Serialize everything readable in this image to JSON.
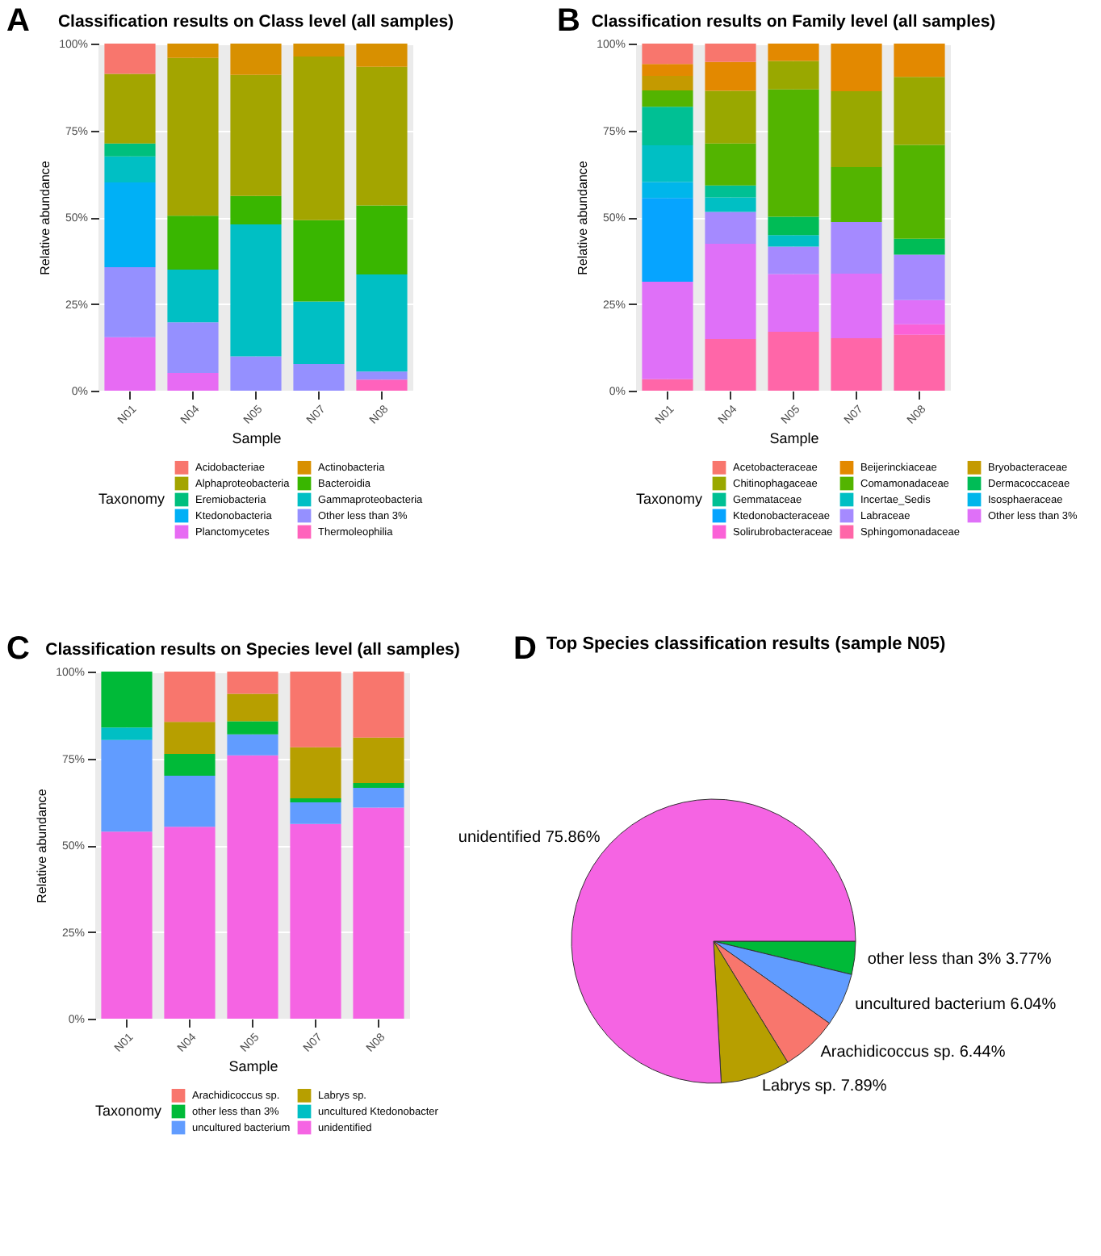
{
  "chart_data": [
    {
      "type": "bar",
      "title": "Classification results on Class level (all samples)",
      "annotations": [
        "A"
      ],
      "xlabel": "Sample",
      "ylabel": "Relative abundance",
      "legend_title": "Taxonomy",
      "categories": [
        "N01",
        "N04",
        "N05",
        "N07",
        "N08"
      ],
      "stacked": true,
      "ylim": [
        0,
        100
      ],
      "yticks": [
        {
          "value": 0,
          "label": "0%"
        },
        {
          "value": 25,
          "label": "25%"
        },
        {
          "value": 50,
          "label": "50%"
        },
        {
          "value": 75,
          "label": "75%"
        },
        {
          "value": 100,
          "label": "100%"
        }
      ],
      "grid": true,
      "legend": "bottom",
      "series": [
        {
          "name": "Thermoleophilia",
          "color": "#ff62bc",
          "values": [
            0,
            0,
            0,
            0,
            3.2
          ]
        },
        {
          "name": "Planctomycetes",
          "color": "#e76bf3",
          "values": [
            15.4,
            5.1,
            0,
            0,
            0
          ]
        },
        {
          "name": "Other less than 3%",
          "color": "#9590ff",
          "values": [
            20.2,
            14.6,
            9.9,
            7.7,
            2.3
          ]
        },
        {
          "name": "Ktedonobacteria",
          "color": "#00b0f6",
          "values": [
            24.4,
            0,
            0,
            0,
            0
          ]
        },
        {
          "name": "Gammaproteobacteria",
          "color": "#00bfc4",
          "values": [
            7.5,
            15.2,
            38.0,
            18.0,
            28.0
          ]
        },
        {
          "name": "Eremiobacteria",
          "color": "#00bf7d",
          "values": [
            3.7,
            0,
            0,
            0,
            0
          ]
        },
        {
          "name": "Bacteroidia",
          "color": "#39b600",
          "values": [
            0,
            15.5,
            8.2,
            23.4,
            19.9
          ]
        },
        {
          "name": "Alphaproteobacteria",
          "color": "#a3a500",
          "values": [
            20.1,
            45.5,
            34.9,
            47.2,
            39.9
          ]
        },
        {
          "name": "Actinobacteria",
          "color": "#d89000",
          "values": [
            0,
            4.1,
            9.0,
            3.7,
            6.7
          ]
        },
        {
          "name": "Acidobacteriae",
          "color": "#f8766d",
          "values": [
            8.7,
            0,
            0,
            0,
            0
          ]
        }
      ]
    },
    {
      "type": "bar",
      "title": "Classification results on Family level (all samples)",
      "annotations": [
        "B"
      ],
      "xlabel": "Sample",
      "ylabel": "Relative abundance",
      "legend_title": "Taxonomy",
      "categories": [
        "N01",
        "N04",
        "N05",
        "N07",
        "N08"
      ],
      "stacked": true,
      "ylim": [
        0,
        100
      ],
      "yticks": [
        {
          "value": 0,
          "label": "0%"
        },
        {
          "value": 25,
          "label": "25%"
        },
        {
          "value": 50,
          "label": "50%"
        },
        {
          "value": 75,
          "label": "75%"
        },
        {
          "value": 100,
          "label": "100%"
        }
      ],
      "grid": true,
      "legend": "bottom",
      "series": [
        {
          "name": "Sphingomonadaceae",
          "color": "#ff66a8",
          "values": [
            3.3,
            14.9,
            17.0,
            15.1,
            16.1
          ]
        },
        {
          "name": "Solirubrobacteraceae",
          "color": "#fb61d7",
          "values": [
            0,
            0,
            0,
            0,
            3.0
          ]
        },
        {
          "name": "Other less than 3%",
          "color": "#df70f8",
          "values": [
            28.1,
            27.4,
            16.6,
            18.6,
            7.0
          ]
        },
        {
          "name": "Labraceae",
          "color": "#a58aff",
          "values": [
            0,
            9.2,
            7.9,
            14.9,
            13.1
          ]
        },
        {
          "name": "Ktedonobacteraceae",
          "color": "#06a4ff",
          "values": [
            24.1,
            0,
            0,
            0,
            0
          ]
        },
        {
          "name": "Isosphaeraceae",
          "color": "#00b6eb",
          "values": [
            4.6,
            0,
            0,
            0,
            0
          ]
        },
        {
          "name": "Incertae_Sedis",
          "color": "#00bfc4",
          "values": [
            10.6,
            4.2,
            3.3,
            0,
            0
          ]
        },
        {
          "name": "Gemmataceae",
          "color": "#00c094",
          "values": [
            11.1,
            3.4,
            0,
            0,
            0
          ]
        },
        {
          "name": "Dermacoccaceae",
          "color": "#00bc56",
          "values": [
            0,
            0,
            5.3,
            0,
            4.6
          ]
        },
        {
          "name": "Comamonadaceae",
          "color": "#53b400",
          "values": [
            4.7,
            12.1,
            36.7,
            15.8,
            27.0
          ]
        },
        {
          "name": "Chitinophagaceae",
          "color": "#99a800",
          "values": [
            0,
            15.2,
            8.2,
            21.9,
            19.6
          ]
        },
        {
          "name": "Bryobacteraceae",
          "color": "#c49a00",
          "values": [
            4.2,
            0,
            0,
            0,
            0
          ]
        },
        {
          "name": "Beijerinckiaceae",
          "color": "#e38900",
          "values": [
            3.4,
            8.3,
            5.0,
            13.7,
            9.6
          ]
        },
        {
          "name": "Acetobacteraceae",
          "color": "#f8766d",
          "values": [
            5.9,
            5.3,
            0,
            0,
            0
          ]
        }
      ]
    },
    {
      "type": "bar",
      "title": "Classification results on Species level (all samples)",
      "annotations": [
        "C"
      ],
      "xlabel": "Sample",
      "ylabel": "Relative abundance",
      "legend_title": "Taxonomy",
      "categories": [
        "N01",
        "N04",
        "N05",
        "N07",
        "N08"
      ],
      "stacked": true,
      "ylim": [
        0,
        100
      ],
      "yticks": [
        {
          "value": 0,
          "label": "0%"
        },
        {
          "value": 25,
          "label": "25%"
        },
        {
          "value": 50,
          "label": "50%"
        },
        {
          "value": 75,
          "label": "75%"
        },
        {
          "value": 100,
          "label": "100%"
        }
      ],
      "grid": true,
      "legend": "bottom",
      "series": [
        {
          "name": "unidentified",
          "color": "#f564e3",
          "values": [
            53.9,
            55.3,
            75.9,
            56.1,
            60.8
          ]
        },
        {
          "name": "uncultured bacterium",
          "color": "#619cff",
          "values": [
            26.4,
            14.7,
            6.0,
            6.2,
            5.7
          ]
        },
        {
          "name": "uncultured Ktedonobacter",
          "color": "#00bfc4",
          "values": [
            3.6,
            0,
            0,
            0,
            0
          ]
        },
        {
          "name": "other less than 3%",
          "color": "#00ba38",
          "values": [
            16.1,
            6.3,
            3.8,
            1.2,
            1.4
          ]
        },
        {
          "name": "Labrys sp.",
          "color": "#b79f00",
          "values": [
            0,
            9.2,
            7.9,
            14.7,
            13.1
          ]
        },
        {
          "name": "Arachidicoccus sp.",
          "color": "#f8766d",
          "values": [
            0,
            14.5,
            6.4,
            21.8,
            19.0
          ]
        }
      ]
    },
    {
      "type": "pie",
      "title": "Top Species classification results (sample N05)",
      "annotations": [
        "D"
      ],
      "categories": [
        "other less than 3%",
        "uncultured bacterium",
        "Arachidicoccus sp.",
        "Labrys sp.",
        "unidentified"
      ],
      "values": [
        3.77,
        6.04,
        6.44,
        7.89,
        75.86
      ],
      "colors": [
        "#00ba38",
        "#619cff",
        "#f8766d",
        "#b79f00",
        "#f564e3"
      ],
      "value_labels": [
        "3.77%",
        "6.04%",
        "6.44%",
        "7.89%",
        "75.86%"
      ]
    }
  ]
}
